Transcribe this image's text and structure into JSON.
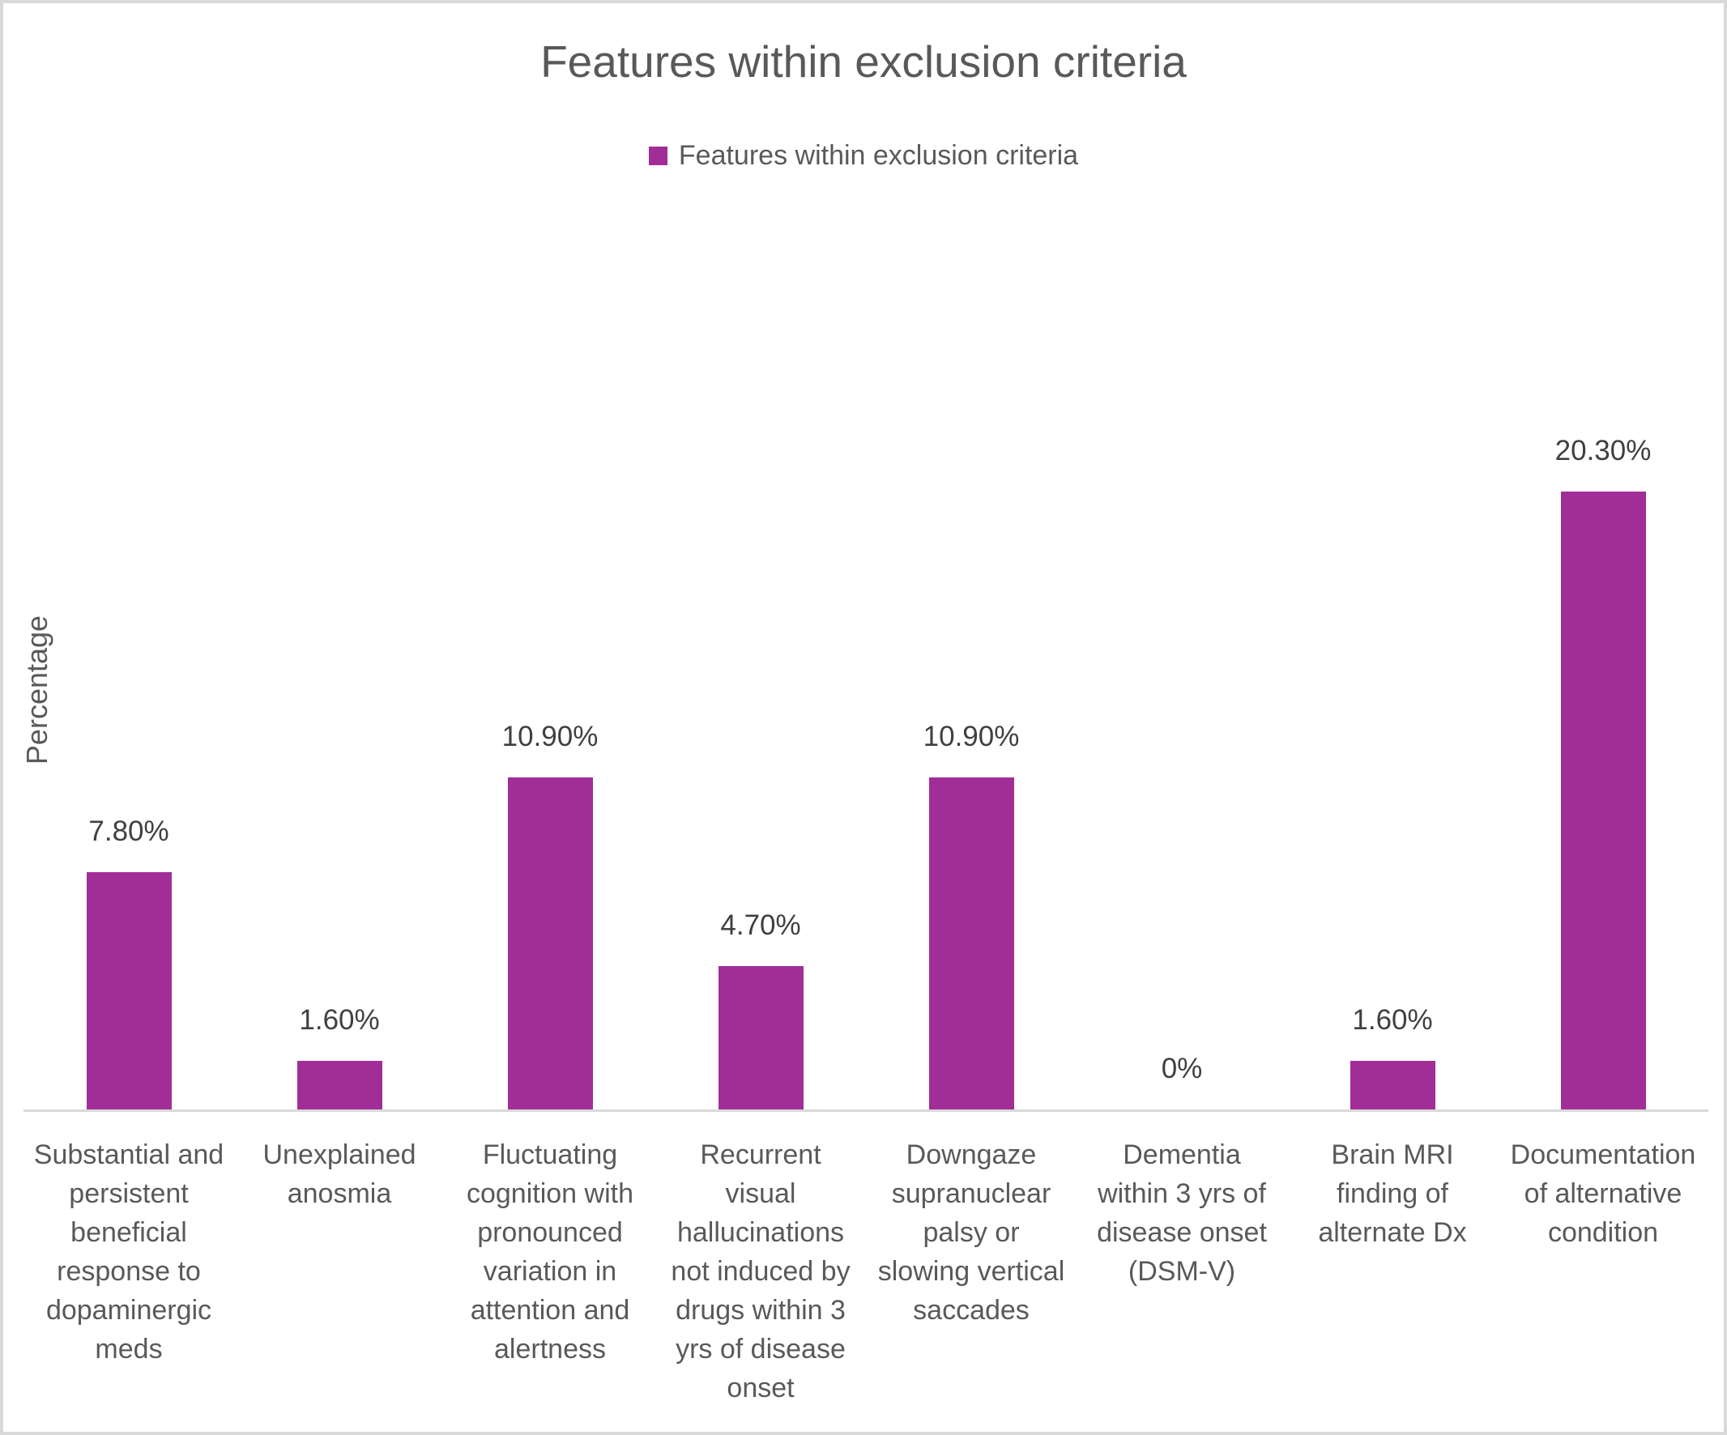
{
  "chart_data": {
    "type": "bar",
    "title": "Features within exclusion criteria",
    "legend": [
      "Features within exclusion criteria"
    ],
    "legend_position": "top-center",
    "xlabel": "",
    "ylabel": "Percentage",
    "grid": false,
    "y_axis_tick_labels_visible": false,
    "ylim": [
      0,
      21.5
    ],
    "bar_color": "#A12D97",
    "categories": [
      "Substantial and persistent beneficial response to dopaminergic meds",
      "Unexplained anosmia",
      "Fluctuating cognition with pronounced variation in attention and alertness",
      "Recurrent visual hallucinations not induced by drugs within 3 yrs of disease onset",
      "Downgaze supranuclear palsy or slowing vertical saccades",
      "Dementia within 3 yrs of disease onset (DSM-V)",
      "Brain MRI finding of alternate Dx",
      "Documentation of alternative condition"
    ],
    "category_lines": [
      [
        "Substantial and",
        "persistent",
        "beneficial",
        "response to",
        "dopaminergic",
        "meds"
      ],
      [
        "Unexplained",
        "anosmia"
      ],
      [
        "Fluctuating",
        "cognition with",
        "pronounced",
        "variation in",
        "attention and",
        "alertness"
      ],
      [
        "Recurrent",
        "visual",
        "hallucinations",
        "not induced by",
        "drugs within 3",
        "yrs of disease",
        "onset"
      ],
      [
        "Downgaze",
        "supranuclear",
        "palsy or",
        "slowing vertical",
        "saccades"
      ],
      [
        "Dementia",
        "within 3 yrs of",
        "disease onset",
        "(DSM-V)"
      ],
      [
        "Brain MRI",
        "finding of",
        "alternate Dx"
      ],
      [
        "Documentation",
        "of alternative",
        "condition"
      ]
    ],
    "values": [
      7.8,
      1.6,
      10.9,
      4.7,
      10.9,
      0,
      1.6,
      20.3
    ],
    "data_labels": [
      "7.80%",
      "1.60%",
      "10.90%",
      "4.70%",
      "10.90%",
      "0%",
      "1.60%",
      "20.30%"
    ],
    "colors": {
      "title_text": "#595959",
      "legend_text": "#595959",
      "category_text": "#595959",
      "data_label_text": "#404040",
      "axis_line": "#D9D9D9",
      "chart_border": "#D9D9D9",
      "background": "#FFFFFF"
    }
  }
}
